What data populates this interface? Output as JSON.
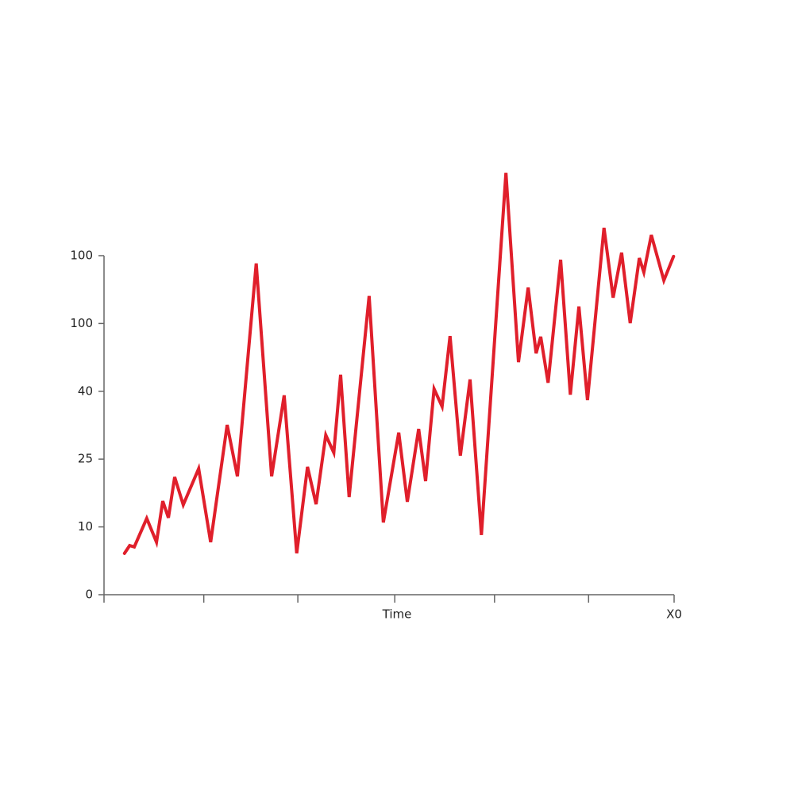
{
  "chart_data": {
    "type": "line",
    "x_label": "Time",
    "x": [
      3.6,
      4.5,
      5.3,
      7.5,
      9.2,
      10.3,
      11.3,
      12.4,
      13.9,
      16.6,
      18.7,
      21.6,
      23.4,
      26.7,
      29.4,
      31.6,
      33.8,
      35.7,
      37.2,
      38.9,
      40.3,
      41.5,
      43.0,
      46.5,
      49.0,
      51.7,
      53.2,
      55.2,
      56.4,
      57.9,
      59.3,
      60.7,
      62.5,
      64.2,
      66.2,
      70.5,
      72.7,
      74.4,
      75.8,
      76.6,
      77.9,
      80.1,
      81.8,
      83.3,
      84.8,
      87.7,
      89.3,
      90.8,
      92.3,
      93.9,
      94.7,
      96.0,
      98.2,
      99.9
    ],
    "series": [
      {
        "color": "#e01f2b",
        "values": [
          12.2,
          14.5,
          14.1,
          22.5,
          15.5,
          27.6,
          22.7,
          34.7,
          26.5,
          37.2,
          15.5,
          50.1,
          34.9,
          97.7,
          34.9,
          58.8,
          12.2,
          37.7,
          26.7,
          47.1,
          41.9,
          64.9,
          28.8,
          88.1,
          21.3,
          47.8,
          27.4,
          48.9,
          33.5,
          60.7,
          55.5,
          76.3,
          41.0,
          63.5,
          17.6,
          124.4,
          68.6,
          90.6,
          71.2,
          76.1,
          62.5,
          98.8,
          59.0,
          85.0,
          57.4,
          108.2,
          87.6,
          100.9,
          80.1,
          99.3,
          95.1,
          106.1,
          92.7,
          99.8
        ]
      }
    ],
    "xlim": [
      0,
      100
    ],
    "xtick_marks": [
      0,
      17.5,
      34,
      51,
      68.5,
      85
    ],
    "xticks": [
      {
        "value": 100,
        "label": "X0"
      }
    ],
    "ylim": [
      0,
      100
    ],
    "yticks": [
      0,
      {
        "value": 20,
        "label": "10"
      },
      {
        "value": 40,
        "label": "25"
      },
      {
        "value": 60,
        "label": "40"
      },
      {
        "value": 80,
        "label": "100"
      },
      100
    ]
  }
}
